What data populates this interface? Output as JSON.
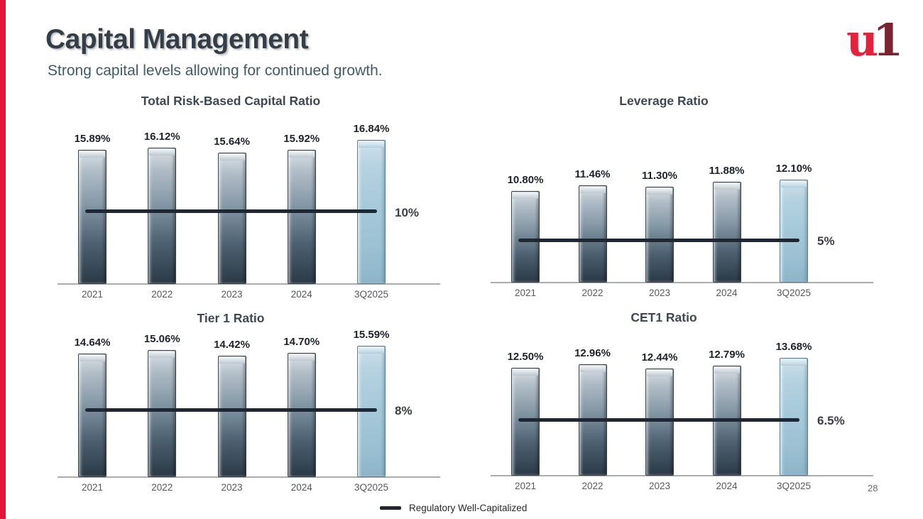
{
  "slide": {
    "title": "Capital Management",
    "subtitle": "Strong capital levels allowing for continued growth.",
    "page_number": "28",
    "logo": {
      "part1": "u",
      "part2": "1",
      "part1_color": "#e0243e",
      "part2_color": "#7d2330"
    },
    "accent_color": "#e5123a"
  },
  "legend": {
    "label": "Regulatory Well-Capitalized",
    "line_color": "#1f2733"
  },
  "colors": {
    "bar_gradient_top": "#dce2e7",
    "bar_gradient_bottom": "#2b3945",
    "bar_highlight_blue": "#a6c9da",
    "threshold_line": "#1f2733",
    "title_text": "#343e49",
    "subtitle_text": "#3e5b69"
  },
  "chart_data": [
    {
      "type": "bar",
      "title": "Total Risk-Based Capital Ratio",
      "categories": [
        "2021",
        "2022",
        "2023",
        "2024",
        "3Q2025"
      ],
      "values": [
        15.89,
        16.12,
        15.64,
        15.92,
        16.84
      ],
      "value_labels": [
        "15.89%",
        "16.12%",
        "15.64%",
        "15.92%",
        "16.84%"
      ],
      "threshold": {
        "value": 10,
        "label": "10%"
      },
      "ylim": [
        3,
        17
      ],
      "highlight_last": true,
      "grid": false
    },
    {
      "type": "bar",
      "title": "Leverage Ratio",
      "categories": [
        "2021",
        "2022",
        "2023",
        "2024",
        "3Q2025"
      ],
      "values": [
        10.8,
        11.46,
        11.3,
        11.88,
        12.1
      ],
      "value_labels": [
        "10.80%",
        "11.46%",
        "11.30%",
        "11.88%",
        "12.10%"
      ],
      "threshold": {
        "value": 5,
        "label": "5%"
      },
      "ylim": [
        0,
        12.2
      ],
      "highlight_last": true,
      "grid": false
    },
    {
      "type": "bar",
      "title": "Tier 1 Ratio",
      "categories": [
        "2021",
        "2022",
        "2023",
        "2024",
        "3Q2025"
      ],
      "values": [
        14.64,
        15.06,
        14.42,
        14.7,
        15.59
      ],
      "value_labels": [
        "14.64%",
        "15.06%",
        "14.42%",
        "14.70%",
        "15.59%"
      ],
      "threshold": {
        "value": 8,
        "label": "8%"
      },
      "ylim": [
        0,
        16
      ],
      "highlight_last": true,
      "grid": false
    },
    {
      "type": "bar",
      "title": "CET1 Ratio",
      "categories": [
        "2021",
        "2022",
        "2023",
        "2024",
        "3Q2025"
      ],
      "values": [
        12.5,
        12.96,
        12.44,
        12.79,
        13.68
      ],
      "value_labels": [
        "12.50%",
        "12.96%",
        "12.44%",
        "12.79%",
        "13.68%"
      ],
      "threshold": {
        "value": 6.5,
        "label": "6.5%"
      },
      "ylim": [
        0,
        14
      ],
      "highlight_last": true,
      "grid": false
    }
  ]
}
